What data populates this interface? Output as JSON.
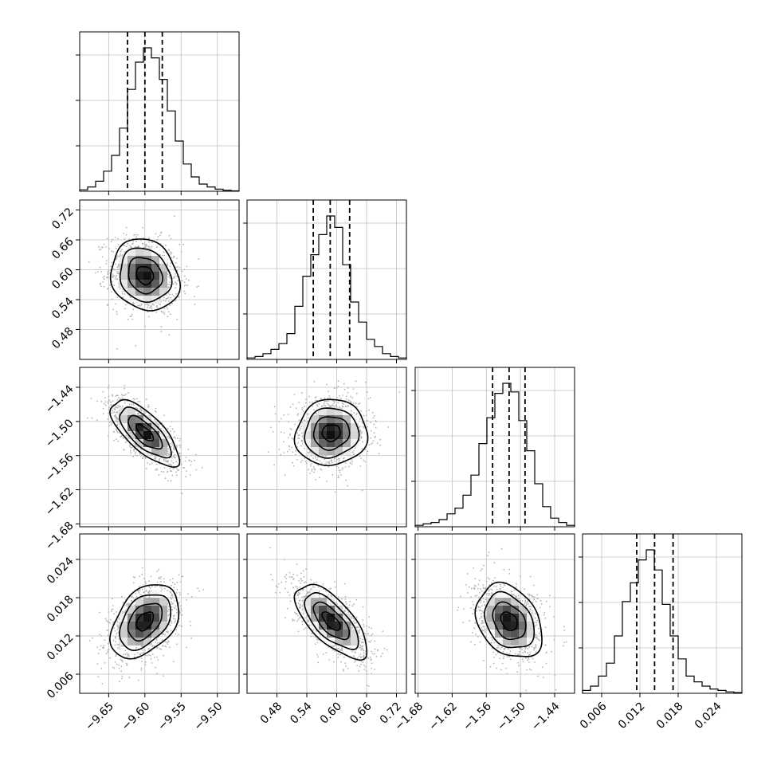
{
  "chart_data": {
    "type": "corner",
    "parameters": 4,
    "colors": {
      "line": "#000000",
      "grid": "#bfbfbf",
      "frame": "#000000",
      "scatter": "#b3b3b3"
    },
    "grid": true,
    "axes": [
      {
        "range": [
          -9.69,
          -9.47
        ],
        "ticks": [
          -9.65,
          -9.6,
          -9.55,
          -9.5
        ],
        "tick_labels": [
          "−9.65",
          "−9.60",
          "−9.55",
          "−9.50"
        ],
        "median": -9.6,
        "quantile_16": -9.624,
        "quantile_84": -9.576,
        "mean": -9.6,
        "sd": 0.0235
      },
      {
        "range": [
          0.42,
          0.74
        ],
        "ticks": [
          0.48,
          0.54,
          0.6,
          0.66,
          0.72
        ],
        "tick_labels": [
          "0.48",
          "0.54",
          "0.60",
          "0.66",
          "0.72"
        ],
        "median": 0.587,
        "quantile_16": 0.553,
        "quantile_84": 0.626,
        "mean": 0.589,
        "sd": 0.036
      },
      {
        "range": [
          -1.685,
          -1.405
        ],
        "ticks": [
          -1.68,
          -1.62,
          -1.56,
          -1.5,
          -1.44
        ],
        "tick_labels": [
          "−1.68",
          "−1.62",
          "−1.56",
          "−1.50",
          "−1.44"
        ],
        "median": -1.52,
        "quantile_16": -1.549,
        "quantile_84": -1.492,
        "mean": -1.52,
        "sd": 0.029
      },
      {
        "range": [
          0.003,
          0.028
        ],
        "ticks": [
          0.006,
          0.012,
          0.018,
          0.024
        ],
        "tick_labels": [
          "0.006",
          "0.012",
          "0.018",
          "0.024"
        ],
        "median": 0.0143,
        "quantile_16": 0.0115,
        "quantile_84": 0.0172,
        "mean": 0.0143,
        "sd": 0.0029
      }
    ],
    "histograms": [
      {
        "counts": [
          0.01,
          0.03,
          0.07,
          0.14,
          0.25,
          0.44,
          0.71,
          0.9,
          1.0,
          0.93,
          0.78,
          0.56,
          0.35,
          0.19,
          0.1,
          0.05,
          0.03,
          0.015,
          0.007,
          0.003
        ]
      },
      {
        "counts": [
          0.01,
          0.02,
          0.04,
          0.07,
          0.11,
          0.18,
          0.37,
          0.58,
          0.73,
          0.87,
          1.0,
          0.92,
          0.66,
          0.4,
          0.26,
          0.14,
          0.09,
          0.04,
          0.02,
          0.01
        ]
      },
      {
        "counts": [
          0.01,
          0.02,
          0.03,
          0.05,
          0.09,
          0.13,
          0.22,
          0.36,
          0.58,
          0.76,
          0.93,
          1.0,
          0.94,
          0.74,
          0.53,
          0.3,
          0.14,
          0.06,
          0.03,
          0.01
        ]
      },
      {
        "counts": [
          0.02,
          0.05,
          0.12,
          0.21,
          0.4,
          0.64,
          0.77,
          0.93,
          1.0,
          0.86,
          0.62,
          0.4,
          0.24,
          0.12,
          0.08,
          0.05,
          0.03,
          0.02,
          0.01,
          0.005
        ]
      }
    ],
    "pairs": [
      {
        "row": 1,
        "col": 0,
        "rho": -0.15
      },
      {
        "row": 2,
        "col": 0,
        "rho": -0.72
      },
      {
        "row": 2,
        "col": 1,
        "rho": 0.05
      },
      {
        "row": 3,
        "col": 0,
        "rho": 0.4
      },
      {
        "row": 3,
        "col": 1,
        "rho": -0.68
      },
      {
        "row": 3,
        "col": 2,
        "rho": -0.3
      }
    ],
    "contour_levels_sigma": [
      0.5,
      1.0,
      1.5,
      2.0
    ]
  }
}
